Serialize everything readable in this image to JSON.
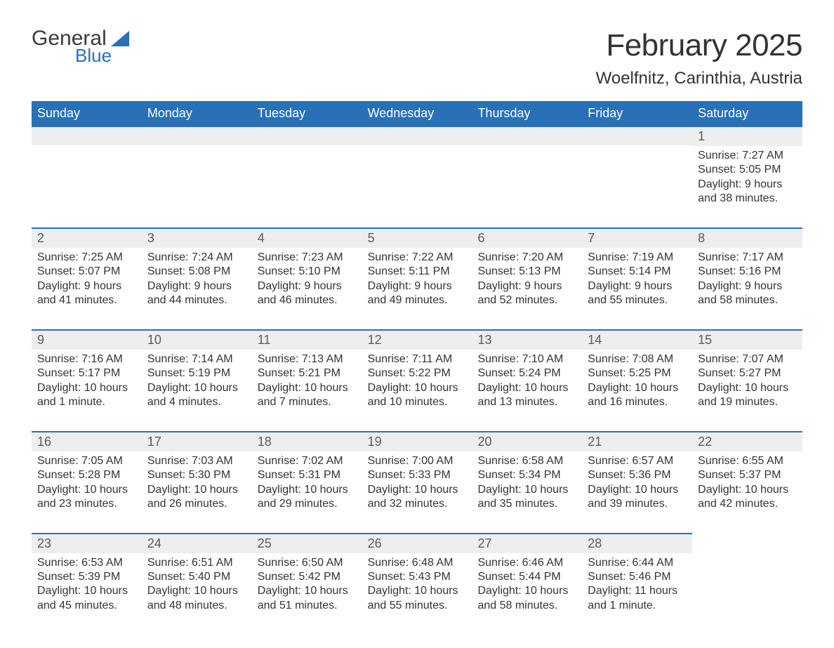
{
  "logo": {
    "general": "General",
    "blue": "Blue"
  },
  "title": "February 2025",
  "subtitle": "Woelfnitz, Carinthia, Austria",
  "colors": {
    "header_bg": "#2970b8",
    "header_text": "#ffffff",
    "day_header_bg": "#eeeeee",
    "border": "#2970b8",
    "body_text": "#333333",
    "logo_blue": "#2970b8",
    "logo_dark": "#3a3a3a",
    "page_bg": "#ffffff"
  },
  "typography": {
    "title_fontsize": 44,
    "subtitle_fontsize": 24,
    "header_cell_fontsize": 18,
    "daynum_fontsize": 18,
    "body_fontsize": 16,
    "font_family": "Arial"
  },
  "weekdays": [
    "Sunday",
    "Monday",
    "Tuesday",
    "Wednesday",
    "Thursday",
    "Friday",
    "Saturday"
  ],
  "weeks": [
    [
      null,
      null,
      null,
      null,
      null,
      null,
      {
        "n": "1",
        "sunrise": "Sunrise: 7:27 AM",
        "sunset": "Sunset: 5:05 PM",
        "daylight1": "Daylight: 9 hours",
        "daylight2": "and 38 minutes."
      }
    ],
    [
      {
        "n": "2",
        "sunrise": "Sunrise: 7:25 AM",
        "sunset": "Sunset: 5:07 PM",
        "daylight1": "Daylight: 9 hours",
        "daylight2": "and 41 minutes."
      },
      {
        "n": "3",
        "sunrise": "Sunrise: 7:24 AM",
        "sunset": "Sunset: 5:08 PM",
        "daylight1": "Daylight: 9 hours",
        "daylight2": "and 44 minutes."
      },
      {
        "n": "4",
        "sunrise": "Sunrise: 7:23 AM",
        "sunset": "Sunset: 5:10 PM",
        "daylight1": "Daylight: 9 hours",
        "daylight2": "and 46 minutes."
      },
      {
        "n": "5",
        "sunrise": "Sunrise: 7:22 AM",
        "sunset": "Sunset: 5:11 PM",
        "daylight1": "Daylight: 9 hours",
        "daylight2": "and 49 minutes."
      },
      {
        "n": "6",
        "sunrise": "Sunrise: 7:20 AM",
        "sunset": "Sunset: 5:13 PM",
        "daylight1": "Daylight: 9 hours",
        "daylight2": "and 52 minutes."
      },
      {
        "n": "7",
        "sunrise": "Sunrise: 7:19 AM",
        "sunset": "Sunset: 5:14 PM",
        "daylight1": "Daylight: 9 hours",
        "daylight2": "and 55 minutes."
      },
      {
        "n": "8",
        "sunrise": "Sunrise: 7:17 AM",
        "sunset": "Sunset: 5:16 PM",
        "daylight1": "Daylight: 9 hours",
        "daylight2": "and 58 minutes."
      }
    ],
    [
      {
        "n": "9",
        "sunrise": "Sunrise: 7:16 AM",
        "sunset": "Sunset: 5:17 PM",
        "daylight1": "Daylight: 10 hours",
        "daylight2": "and 1 minute."
      },
      {
        "n": "10",
        "sunrise": "Sunrise: 7:14 AM",
        "sunset": "Sunset: 5:19 PM",
        "daylight1": "Daylight: 10 hours",
        "daylight2": "and 4 minutes."
      },
      {
        "n": "11",
        "sunrise": "Sunrise: 7:13 AM",
        "sunset": "Sunset: 5:21 PM",
        "daylight1": "Daylight: 10 hours",
        "daylight2": "and 7 minutes."
      },
      {
        "n": "12",
        "sunrise": "Sunrise: 7:11 AM",
        "sunset": "Sunset: 5:22 PM",
        "daylight1": "Daylight: 10 hours",
        "daylight2": "and 10 minutes."
      },
      {
        "n": "13",
        "sunrise": "Sunrise: 7:10 AM",
        "sunset": "Sunset: 5:24 PM",
        "daylight1": "Daylight: 10 hours",
        "daylight2": "and 13 minutes."
      },
      {
        "n": "14",
        "sunrise": "Sunrise: 7:08 AM",
        "sunset": "Sunset: 5:25 PM",
        "daylight1": "Daylight: 10 hours",
        "daylight2": "and 16 minutes."
      },
      {
        "n": "15",
        "sunrise": "Sunrise: 7:07 AM",
        "sunset": "Sunset: 5:27 PM",
        "daylight1": "Daylight: 10 hours",
        "daylight2": "and 19 minutes."
      }
    ],
    [
      {
        "n": "16",
        "sunrise": "Sunrise: 7:05 AM",
        "sunset": "Sunset: 5:28 PM",
        "daylight1": "Daylight: 10 hours",
        "daylight2": "and 23 minutes."
      },
      {
        "n": "17",
        "sunrise": "Sunrise: 7:03 AM",
        "sunset": "Sunset: 5:30 PM",
        "daylight1": "Daylight: 10 hours",
        "daylight2": "and 26 minutes."
      },
      {
        "n": "18",
        "sunrise": "Sunrise: 7:02 AM",
        "sunset": "Sunset: 5:31 PM",
        "daylight1": "Daylight: 10 hours",
        "daylight2": "and 29 minutes."
      },
      {
        "n": "19",
        "sunrise": "Sunrise: 7:00 AM",
        "sunset": "Sunset: 5:33 PM",
        "daylight1": "Daylight: 10 hours",
        "daylight2": "and 32 minutes."
      },
      {
        "n": "20",
        "sunrise": "Sunrise: 6:58 AM",
        "sunset": "Sunset: 5:34 PM",
        "daylight1": "Daylight: 10 hours",
        "daylight2": "and 35 minutes."
      },
      {
        "n": "21",
        "sunrise": "Sunrise: 6:57 AM",
        "sunset": "Sunset: 5:36 PM",
        "daylight1": "Daylight: 10 hours",
        "daylight2": "and 39 minutes."
      },
      {
        "n": "22",
        "sunrise": "Sunrise: 6:55 AM",
        "sunset": "Sunset: 5:37 PM",
        "daylight1": "Daylight: 10 hours",
        "daylight2": "and 42 minutes."
      }
    ],
    [
      {
        "n": "23",
        "sunrise": "Sunrise: 6:53 AM",
        "sunset": "Sunset: 5:39 PM",
        "daylight1": "Daylight: 10 hours",
        "daylight2": "and 45 minutes."
      },
      {
        "n": "24",
        "sunrise": "Sunrise: 6:51 AM",
        "sunset": "Sunset: 5:40 PM",
        "daylight1": "Daylight: 10 hours",
        "daylight2": "and 48 minutes."
      },
      {
        "n": "25",
        "sunrise": "Sunrise: 6:50 AM",
        "sunset": "Sunset: 5:42 PM",
        "daylight1": "Daylight: 10 hours",
        "daylight2": "and 51 minutes."
      },
      {
        "n": "26",
        "sunrise": "Sunrise: 6:48 AM",
        "sunset": "Sunset: 5:43 PM",
        "daylight1": "Daylight: 10 hours",
        "daylight2": "and 55 minutes."
      },
      {
        "n": "27",
        "sunrise": "Sunrise: 6:46 AM",
        "sunset": "Sunset: 5:44 PM",
        "daylight1": "Daylight: 10 hours",
        "daylight2": "and 58 minutes."
      },
      {
        "n": "28",
        "sunrise": "Sunrise: 6:44 AM",
        "sunset": "Sunset: 5:46 PM",
        "daylight1": "Daylight: 11 hours",
        "daylight2": "and 1 minute."
      },
      null
    ]
  ]
}
